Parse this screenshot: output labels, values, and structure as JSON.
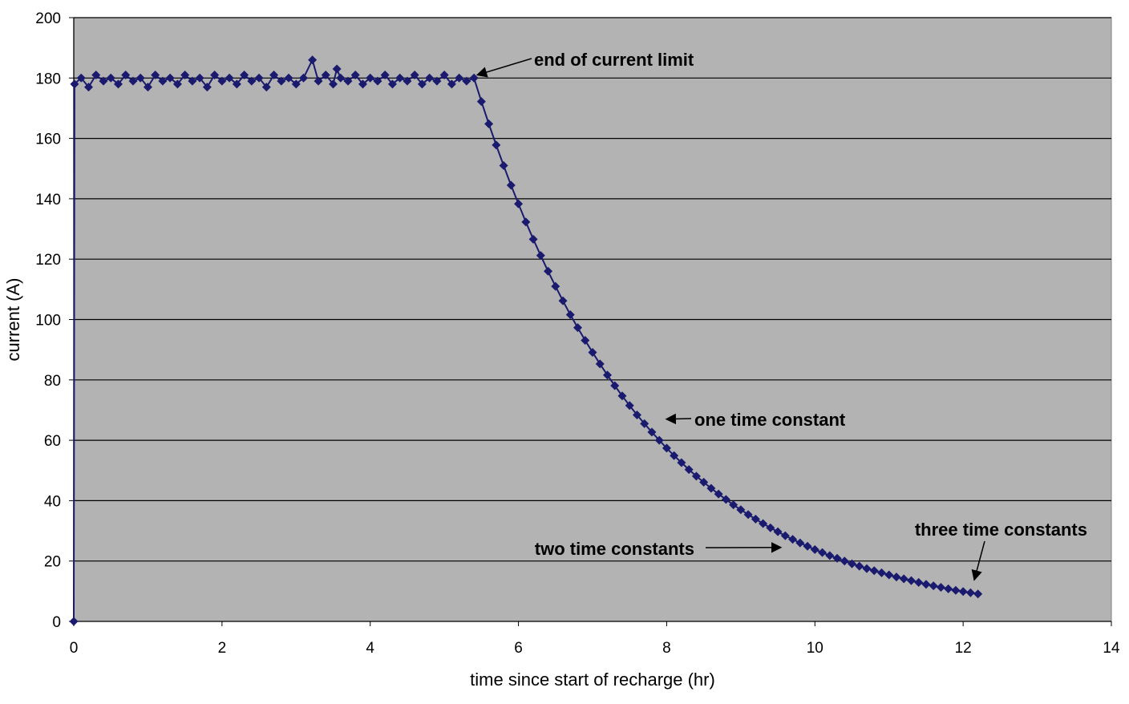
{
  "chart_data": {
    "type": "scatter",
    "title": "",
    "xlabel": "time since start of recharge (hr)",
    "ylabel": "current (A)",
    "xlim": [
      0,
      14
    ],
    "ylim": [
      0,
      200
    ],
    "x_ticks": [
      0,
      2,
      4,
      6,
      8,
      10,
      12,
      14
    ],
    "y_ticks": [
      0,
      20,
      40,
      60,
      80,
      100,
      120,
      140,
      160,
      180,
      200
    ],
    "grid": "horizontal",
    "legend": "none",
    "plot_background": "#b3b3b3",
    "marker": "diamond",
    "series": [
      {
        "color": "#1a1a6e",
        "points": [
          [
            0.0,
            0.0
          ],
          [
            0.01,
            178.0
          ],
          [
            0.1,
            180
          ],
          [
            0.2,
            177
          ],
          [
            0.3,
            181
          ],
          [
            0.4,
            179
          ],
          [
            0.5,
            180
          ],
          [
            0.6,
            178
          ],
          [
            0.7,
            181
          ],
          [
            0.8,
            179
          ],
          [
            0.9,
            180
          ],
          [
            1.0,
            177
          ],
          [
            1.1,
            181
          ],
          [
            1.2,
            179
          ],
          [
            1.3,
            180
          ],
          [
            1.4,
            178
          ],
          [
            1.5,
            181
          ],
          [
            1.6,
            179
          ],
          [
            1.7,
            180
          ],
          [
            1.8,
            177
          ],
          [
            1.9,
            181
          ],
          [
            2.0,
            179
          ],
          [
            2.1,
            180
          ],
          [
            2.2,
            178
          ],
          [
            2.3,
            181
          ],
          [
            2.4,
            179
          ],
          [
            2.5,
            180
          ],
          [
            2.6,
            177
          ],
          [
            2.7,
            181
          ],
          [
            2.8,
            179
          ],
          [
            2.9,
            180
          ],
          [
            3.0,
            178
          ],
          [
            3.1,
            180
          ],
          [
            3.22,
            186
          ],
          [
            3.3,
            179
          ],
          [
            3.4,
            181
          ],
          [
            3.5,
            178
          ],
          [
            3.55,
            183
          ],
          [
            3.6,
            180
          ],
          [
            3.7,
            179
          ],
          [
            3.8,
            181
          ],
          [
            3.9,
            178
          ],
          [
            4.0,
            180
          ],
          [
            4.1,
            179
          ],
          [
            4.2,
            181
          ],
          [
            4.3,
            178
          ],
          [
            4.4,
            180
          ],
          [
            4.5,
            179
          ],
          [
            4.6,
            181
          ],
          [
            4.7,
            178
          ],
          [
            4.8,
            180
          ],
          [
            4.9,
            179
          ],
          [
            5.0,
            181
          ],
          [
            5.1,
            178
          ],
          [
            5.2,
            180
          ],
          [
            5.3,
            179
          ],
          [
            5.4,
            180
          ],
          [
            5.5,
            172.2
          ],
          [
            5.6,
            164.8
          ],
          [
            5.7,
            157.8
          ],
          [
            5.8,
            151.0
          ],
          [
            5.9,
            144.5
          ],
          [
            6.0,
            138.3
          ],
          [
            6.1,
            132.3
          ],
          [
            6.2,
            126.6
          ],
          [
            6.3,
            121.2
          ],
          [
            6.4,
            116.0
          ],
          [
            6.5,
            111.0
          ],
          [
            6.6,
            106.2
          ],
          [
            6.7,
            101.6
          ],
          [
            6.8,
            97.3
          ],
          [
            6.9,
            93.1
          ],
          [
            7.0,
            89.1
          ],
          [
            7.1,
            85.3
          ],
          [
            7.2,
            81.6
          ],
          [
            7.3,
            78.1
          ],
          [
            7.4,
            74.7
          ],
          [
            7.5,
            71.5
          ],
          [
            7.6,
            68.4
          ],
          [
            7.7,
            65.5
          ],
          [
            7.8,
            62.7
          ],
          [
            7.9,
            60.0
          ],
          [
            8.0,
            57.4
          ],
          [
            8.1,
            54.9
          ],
          [
            8.2,
            52.6
          ],
          [
            8.3,
            50.3
          ],
          [
            8.4,
            48.1
          ],
          [
            8.5,
            46.1
          ],
          [
            8.6,
            44.1
          ],
          [
            8.7,
            42.2
          ],
          [
            8.8,
            40.4
          ],
          [
            8.9,
            38.6
          ],
          [
            9.0,
            37.0
          ],
          [
            9.1,
            35.4
          ],
          [
            9.2,
            33.9
          ],
          [
            9.3,
            32.4
          ],
          [
            9.4,
            31.0
          ],
          [
            9.5,
            29.7
          ],
          [
            9.6,
            28.4
          ],
          [
            9.7,
            27.2
          ],
          [
            9.8,
            26.0
          ],
          [
            9.9,
            24.9
          ],
          [
            10.0,
            23.8
          ],
          [
            10.1,
            22.8
          ],
          [
            10.2,
            21.8
          ],
          [
            10.3,
            20.9
          ],
          [
            10.4,
            20.0
          ],
          [
            10.5,
            19.1
          ],
          [
            10.6,
            18.3
          ],
          [
            10.7,
            17.5
          ],
          [
            10.8,
            16.8
          ],
          [
            10.9,
            16.1
          ],
          [
            11.0,
            15.4
          ],
          [
            11.1,
            14.7
          ],
          [
            11.2,
            14.1
          ],
          [
            11.3,
            13.5
          ],
          [
            11.4,
            12.9
          ],
          [
            11.5,
            12.3
          ],
          [
            11.6,
            11.8
          ],
          [
            11.7,
            11.3
          ],
          [
            11.8,
            10.8
          ],
          [
            11.9,
            10.3
          ],
          [
            12.0,
            9.9
          ],
          [
            12.1,
            9.5
          ],
          [
            12.2,
            9.1
          ]
        ]
      }
    ],
    "annotations": [
      {
        "text": "end of current limit",
        "points_to": [
          5.4,
          181
        ]
      },
      {
        "text": "one time constant",
        "points_to": [
          7.95,
          67
        ]
      },
      {
        "text": "two time constants",
        "points_to": [
          9.5,
          24.5
        ]
      },
      {
        "text": "three time constants",
        "points_to": [
          12.15,
          10
        ]
      }
    ]
  }
}
